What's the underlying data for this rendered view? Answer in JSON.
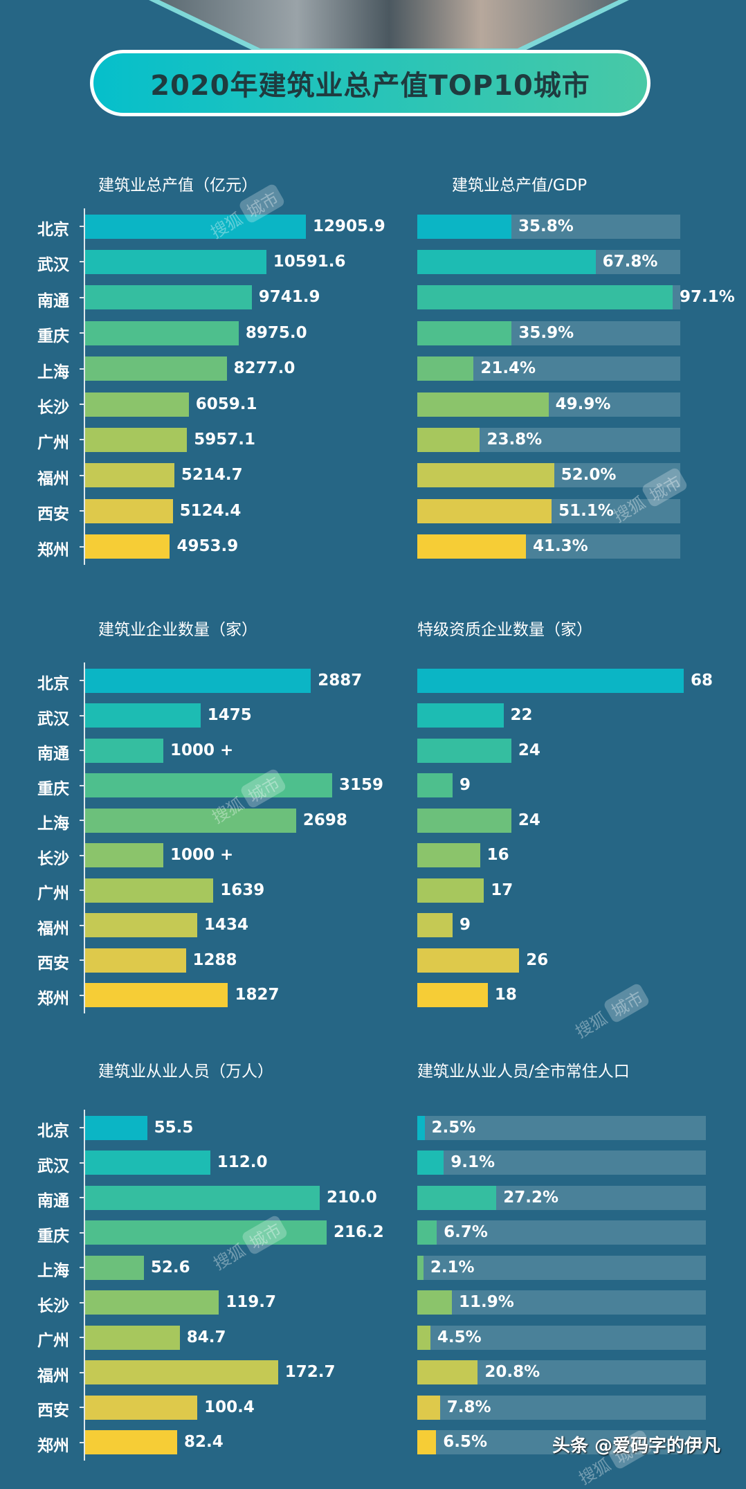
{
  "header": {
    "title": "2020年建筑业总产值TOP10城市"
  },
  "watermark": {
    "part1": "搜狐",
    "part2": "城市"
  },
  "footer": {
    "text": "头条 @爱码字的伊凡"
  },
  "colors": {
    "background": "#266685",
    "track": "#4a8199",
    "bars": [
      "#0bb5c5",
      "#1dbcb3",
      "#35bea0",
      "#4ebf8d",
      "#6cc07b",
      "#8bc46b",
      "#a7c75d",
      "#c5c954",
      "#dec94b",
      "#f6cd36"
    ]
  },
  "chart_data": [
    {
      "type": "bar",
      "orientation": "horizontal",
      "title": "建筑业总产值（亿元）",
      "categories": [
        "北京",
        "武汉",
        "南通",
        "重庆",
        "上海",
        "长沙",
        "广州",
        "福州",
        "西安",
        "郑州"
      ],
      "values": [
        12905.9,
        10591.6,
        9741.9,
        8975.0,
        8277.0,
        6059.1,
        5957.1,
        5214.7,
        5124.4,
        4953.9
      ],
      "labels": [
        "12905.9",
        "10591.6",
        "9741.9",
        "8975.0",
        "8277.0",
        "6059.1",
        "5957.1",
        "5214.7",
        "5124.4",
        "4953.9"
      ]
    },
    {
      "type": "bar",
      "orientation": "horizontal",
      "title": "建筑业总产值/GDP",
      "xlim": [
        0,
        100
      ],
      "categories": [
        "北京",
        "武汉",
        "南通",
        "重庆",
        "上海",
        "长沙",
        "广州",
        "福州",
        "西安",
        "郑州"
      ],
      "values": [
        35.8,
        67.8,
        97.1,
        35.9,
        21.4,
        49.9,
        23.8,
        52.0,
        51.1,
        41.3
      ],
      "labels": [
        "35.8%",
        "67.8%",
        "97.1%",
        "35.9%",
        "21.4%",
        "49.9%",
        "23.8%",
        "52.0%",
        "51.1%",
        "41.3%"
      ]
    },
    {
      "type": "bar",
      "orientation": "horizontal",
      "title": "建筑业企业数量（家）",
      "categories": [
        "北京",
        "武汉",
        "南通",
        "重庆",
        "上海",
        "长沙",
        "广州",
        "福州",
        "西安",
        "郑州"
      ],
      "values": [
        2887,
        1475,
        1000,
        3159,
        2698,
        1000,
        1639,
        1434,
        1288,
        1827
      ],
      "labels": [
        "2887",
        "1475",
        "1000 +",
        "3159",
        "2698",
        "1000 +",
        "1639",
        "1434",
        "1288",
        "1827"
      ]
    },
    {
      "type": "bar",
      "orientation": "horizontal",
      "title": "特级资质企业数量（家）",
      "categories": [
        "北京",
        "武汉",
        "南通",
        "重庆",
        "上海",
        "长沙",
        "广州",
        "福州",
        "西安",
        "郑州"
      ],
      "values": [
        68,
        22,
        24,
        9,
        24,
        16,
        17,
        9,
        26,
        18
      ],
      "labels": [
        "68",
        "22",
        "24",
        "9",
        "24",
        "16",
        "17",
        "9",
        "26",
        "18"
      ]
    },
    {
      "type": "bar",
      "orientation": "horizontal",
      "title": "建筑业从业人员（万人）",
      "categories": [
        "北京",
        "武汉",
        "南通",
        "重庆",
        "上海",
        "长沙",
        "广州",
        "福州",
        "西安",
        "郑州"
      ],
      "values": [
        55.5,
        112.0,
        210.0,
        216.2,
        52.6,
        119.7,
        84.7,
        172.7,
        100.4,
        82.4
      ],
      "labels": [
        "55.5",
        "112.0",
        "210.0",
        "216.2",
        "52.6",
        "119.7",
        "84.7",
        "172.7",
        "100.4",
        "82.4"
      ]
    },
    {
      "type": "bar",
      "orientation": "horizontal",
      "title": "建筑业从业人员/全市常住人口",
      "xlim": [
        0,
        100
      ],
      "categories": [
        "北京",
        "武汉",
        "南通",
        "重庆",
        "上海",
        "长沙",
        "广州",
        "福州",
        "西安",
        "郑州"
      ],
      "values": [
        2.5,
        9.1,
        27.2,
        6.7,
        2.1,
        11.9,
        4.5,
        20.8,
        7.8,
        6.5
      ],
      "labels": [
        "2.5%",
        "9.1%",
        "27.2%",
        "6.7%",
        "2.1%",
        "11.9%",
        "4.5%",
        "20.8%",
        "7.8%",
        "6.5%"
      ]
    }
  ]
}
